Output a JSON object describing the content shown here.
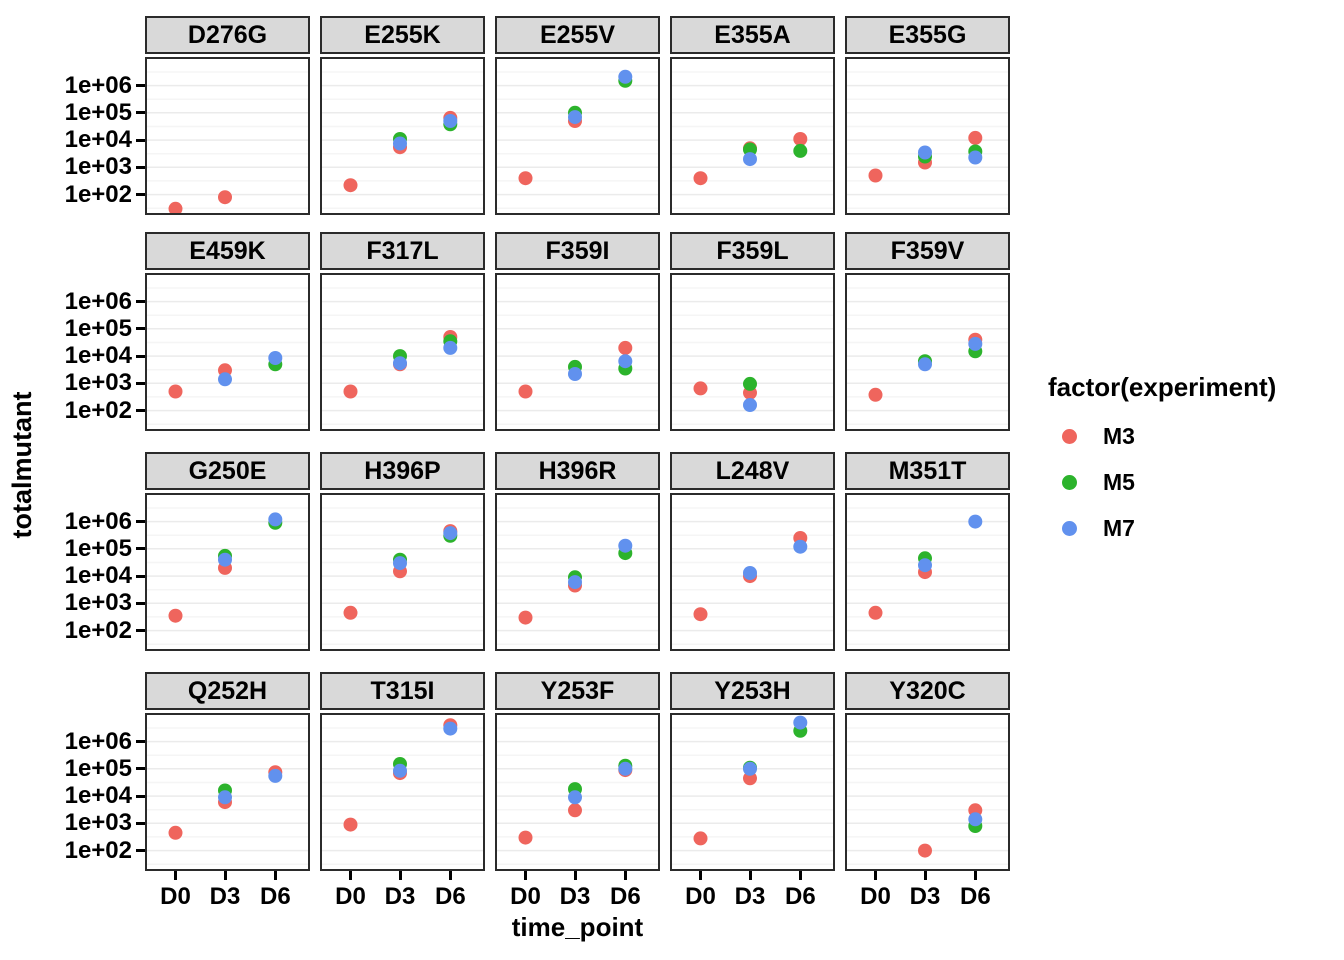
{
  "chart_data": {
    "type": "scatter",
    "xlabel": "time_point",
    "ylabel": "totalmutant",
    "x_categories": [
      "D0",
      "D3",
      "D6"
    ],
    "y_scale": "log10",
    "y_ticks": [
      {
        "label": "1e+06",
        "value": 1000000
      },
      {
        "label": "1e+05",
        "value": 100000
      },
      {
        "label": "1e+04",
        "value": 10000
      },
      {
        "label": "1e+03",
        "value": 1000
      },
      {
        "label": "1e+02",
        "value": 100
      }
    ],
    "y_range_log10": [
      1.25,
      7.05
    ],
    "grid": "major-and-minor",
    "legend": {
      "title": "factor(experiment)",
      "position": "right",
      "entries": [
        {
          "label": "M3",
          "color": "#EF655D"
        },
        {
          "label": "M5",
          "color": "#2CB32C"
        },
        {
          "label": "M7",
          "color": "#6191EE"
        }
      ]
    },
    "colors": {
      "strip_bg": "#d9d9d9",
      "panel_bg": "#ffffff",
      "panel_border": "#2b2b2b",
      "grid_major": "#ebebeb",
      "grid_minor": "#f5f5f5",
      "M3": "#EF655D",
      "M5": "#2CB32C",
      "M7": "#6191EE"
    },
    "facets": [
      {
        "title": "D276G",
        "points": [
          {
            "exp": "M3",
            "x": "D0",
            "y": 30
          },
          {
            "exp": "M3",
            "x": "D3",
            "y": 80
          }
        ]
      },
      {
        "title": "E255K",
        "points": [
          {
            "exp": "M3",
            "x": "D0",
            "y": 220
          },
          {
            "exp": "M3",
            "x": "D3",
            "y": 5500
          },
          {
            "exp": "M3",
            "x": "D6",
            "y": 65000
          },
          {
            "exp": "M5",
            "x": "D3",
            "y": 11000
          },
          {
            "exp": "M5",
            "x": "D6",
            "y": 38000
          },
          {
            "exp": "M7",
            "x": "D3",
            "y": 7500
          },
          {
            "exp": "M7",
            "x": "D6",
            "y": 50000
          }
        ]
      },
      {
        "title": "E255V",
        "points": [
          {
            "exp": "M3",
            "x": "D0",
            "y": 400
          },
          {
            "exp": "M3",
            "x": "D3",
            "y": 50000
          },
          {
            "exp": "M5",
            "x": "D3",
            "y": 100000
          },
          {
            "exp": "M5",
            "x": "D6",
            "y": 1500000
          },
          {
            "exp": "M7",
            "x": "D3",
            "y": 70000
          },
          {
            "exp": "M7",
            "x": "D6",
            "y": 2100000
          }
        ]
      },
      {
        "title": "E355A",
        "points": [
          {
            "exp": "M3",
            "x": "D0",
            "y": 400
          },
          {
            "exp": "M3",
            "x": "D3",
            "y": 5000
          },
          {
            "exp": "M3",
            "x": "D6",
            "y": 11000
          },
          {
            "exp": "M5",
            "x": "D3",
            "y": 4500
          },
          {
            "exp": "M5",
            "x": "D6",
            "y": 4000
          },
          {
            "exp": "M7",
            "x": "D3",
            "y": 2000
          }
        ]
      },
      {
        "title": "E355G",
        "points": [
          {
            "exp": "M3",
            "x": "D0",
            "y": 500
          },
          {
            "exp": "M3",
            "x": "D3",
            "y": 1500
          },
          {
            "exp": "M3",
            "x": "D6",
            "y": 12000
          },
          {
            "exp": "M5",
            "x": "D3",
            "y": 2500
          },
          {
            "exp": "M5",
            "x": "D6",
            "y": 3800
          },
          {
            "exp": "M7",
            "x": "D3",
            "y": 3500
          },
          {
            "exp": "M7",
            "x": "D6",
            "y": 2300
          }
        ]
      },
      {
        "title": "E459K",
        "points": [
          {
            "exp": "M3",
            "x": "D0",
            "y": 500
          },
          {
            "exp": "M3",
            "x": "D3",
            "y": 3000
          },
          {
            "exp": "M5",
            "x": "D6",
            "y": 5000
          },
          {
            "exp": "M7",
            "x": "D3",
            "y": 1400
          },
          {
            "exp": "M7",
            "x": "D6",
            "y": 8500
          }
        ]
      },
      {
        "title": "F317L",
        "points": [
          {
            "exp": "M3",
            "x": "D0",
            "y": 500
          },
          {
            "exp": "M3",
            "x": "D3",
            "y": 5000
          },
          {
            "exp": "M3",
            "x": "D6",
            "y": 50000
          },
          {
            "exp": "M5",
            "x": "D3",
            "y": 10000
          },
          {
            "exp": "M5",
            "x": "D6",
            "y": 35000
          },
          {
            "exp": "M7",
            "x": "D3",
            "y": 5500
          },
          {
            "exp": "M7",
            "x": "D6",
            "y": 20000
          }
        ]
      },
      {
        "title": "F359I",
        "points": [
          {
            "exp": "M3",
            "x": "D0",
            "y": 500
          },
          {
            "exp": "M3",
            "x": "D6",
            "y": 20000
          },
          {
            "exp": "M5",
            "x": "D3",
            "y": 4000
          },
          {
            "exp": "M5",
            "x": "D6",
            "y": 3500
          },
          {
            "exp": "M7",
            "x": "D3",
            "y": 2200
          },
          {
            "exp": "M7",
            "x": "D6",
            "y": 6500
          }
        ]
      },
      {
        "title": "F359L",
        "points": [
          {
            "exp": "M3",
            "x": "D0",
            "y": 650
          },
          {
            "exp": "M3",
            "x": "D3",
            "y": 450
          },
          {
            "exp": "M5",
            "x": "D3",
            "y": 950
          },
          {
            "exp": "M7",
            "x": "D3",
            "y": 160
          }
        ]
      },
      {
        "title": "F359V",
        "points": [
          {
            "exp": "M3",
            "x": "D0",
            "y": 380
          },
          {
            "exp": "M3",
            "x": "D6",
            "y": 40000
          },
          {
            "exp": "M5",
            "x": "D3",
            "y": 6500
          },
          {
            "exp": "M5",
            "x": "D6",
            "y": 15000
          },
          {
            "exp": "M7",
            "x": "D3",
            "y": 5000
          },
          {
            "exp": "M7",
            "x": "D6",
            "y": 28000
          }
        ]
      },
      {
        "title": "G250E",
        "points": [
          {
            "exp": "M3",
            "x": "D0",
            "y": 350
          },
          {
            "exp": "M3",
            "x": "D3",
            "y": 20000
          },
          {
            "exp": "M5",
            "x": "D3",
            "y": 55000
          },
          {
            "exp": "M5",
            "x": "D6",
            "y": 900000
          },
          {
            "exp": "M7",
            "x": "D3",
            "y": 40000
          },
          {
            "exp": "M7",
            "x": "D6",
            "y": 1200000
          }
        ]
      },
      {
        "title": "H396P",
        "points": [
          {
            "exp": "M3",
            "x": "D0",
            "y": 450
          },
          {
            "exp": "M3",
            "x": "D3",
            "y": 15000
          },
          {
            "exp": "M3",
            "x": "D6",
            "y": 450000
          },
          {
            "exp": "M5",
            "x": "D3",
            "y": 40000
          },
          {
            "exp": "M5",
            "x": "D6",
            "y": 300000
          },
          {
            "exp": "M7",
            "x": "D3",
            "y": 30000
          },
          {
            "exp": "M7",
            "x": "D6",
            "y": 380000
          }
        ]
      },
      {
        "title": "H396R",
        "points": [
          {
            "exp": "M3",
            "x": "D0",
            "y": 300
          },
          {
            "exp": "M3",
            "x": "D3",
            "y": 4500
          },
          {
            "exp": "M5",
            "x": "D3",
            "y": 9000
          },
          {
            "exp": "M5",
            "x": "D6",
            "y": 70000
          },
          {
            "exp": "M7",
            "x": "D3",
            "y": 6000
          },
          {
            "exp": "M7",
            "x": "D6",
            "y": 130000
          }
        ]
      },
      {
        "title": "L248V",
        "points": [
          {
            "exp": "M3",
            "x": "D0",
            "y": 400
          },
          {
            "exp": "M3",
            "x": "D3",
            "y": 10000
          },
          {
            "exp": "M3",
            "x": "D6",
            "y": 250000
          },
          {
            "exp": "M7",
            "x": "D3",
            "y": 13000
          },
          {
            "exp": "M7",
            "x": "D6",
            "y": 120000
          }
        ]
      },
      {
        "title": "M351T",
        "points": [
          {
            "exp": "M3",
            "x": "D0",
            "y": 450
          },
          {
            "exp": "M3",
            "x": "D3",
            "y": 14000
          },
          {
            "exp": "M5",
            "x": "D3",
            "y": 45000
          },
          {
            "exp": "M7",
            "x": "D3",
            "y": 25000
          },
          {
            "exp": "M7",
            "x": "D6",
            "y": 1000000
          }
        ]
      },
      {
        "title": "Q252H",
        "points": [
          {
            "exp": "M3",
            "x": "D0",
            "y": 450
          },
          {
            "exp": "M3",
            "x": "D3",
            "y": 6000
          },
          {
            "exp": "M3",
            "x": "D6",
            "y": 75000
          },
          {
            "exp": "M5",
            "x": "D3",
            "y": 16000
          },
          {
            "exp": "M7",
            "x": "D3",
            "y": 9000
          },
          {
            "exp": "M7",
            "x": "D6",
            "y": 55000
          }
        ]
      },
      {
        "title": "T315I",
        "points": [
          {
            "exp": "M3",
            "x": "D0",
            "y": 900
          },
          {
            "exp": "M3",
            "x": "D3",
            "y": 70000
          },
          {
            "exp": "M3",
            "x": "D6",
            "y": 4000000
          },
          {
            "exp": "M5",
            "x": "D3",
            "y": 150000
          },
          {
            "exp": "M7",
            "x": "D3",
            "y": 85000
          },
          {
            "exp": "M7",
            "x": "D6",
            "y": 3000000
          }
        ]
      },
      {
        "title": "Y253F",
        "points": [
          {
            "exp": "M3",
            "x": "D0",
            "y": 300
          },
          {
            "exp": "M3",
            "x": "D3",
            "y": 3000
          },
          {
            "exp": "M3",
            "x": "D6",
            "y": 90000
          },
          {
            "exp": "M5",
            "x": "D3",
            "y": 18000
          },
          {
            "exp": "M5",
            "x": "D6",
            "y": 130000
          },
          {
            "exp": "M7",
            "x": "D3",
            "y": 9000
          },
          {
            "exp": "M7",
            "x": "D6",
            "y": 100000
          }
        ]
      },
      {
        "title": "Y253H",
        "points": [
          {
            "exp": "M3",
            "x": "D0",
            "y": 280
          },
          {
            "exp": "M3",
            "x": "D3",
            "y": 45000
          },
          {
            "exp": "M5",
            "x": "D3",
            "y": 110000
          },
          {
            "exp": "M5",
            "x": "D6",
            "y": 2500000
          },
          {
            "exp": "M7",
            "x": "D3",
            "y": 100000
          },
          {
            "exp": "M7",
            "x": "D6",
            "y": 5000000
          }
        ]
      },
      {
        "title": "Y320C",
        "points": [
          {
            "exp": "M3",
            "x": "D3",
            "y": 100
          },
          {
            "exp": "M3",
            "x": "D6",
            "y": 3000
          },
          {
            "exp": "M5",
            "x": "D6",
            "y": 800
          },
          {
            "exp": "M7",
            "x": "D6",
            "y": 1400
          }
        ]
      }
    ]
  }
}
